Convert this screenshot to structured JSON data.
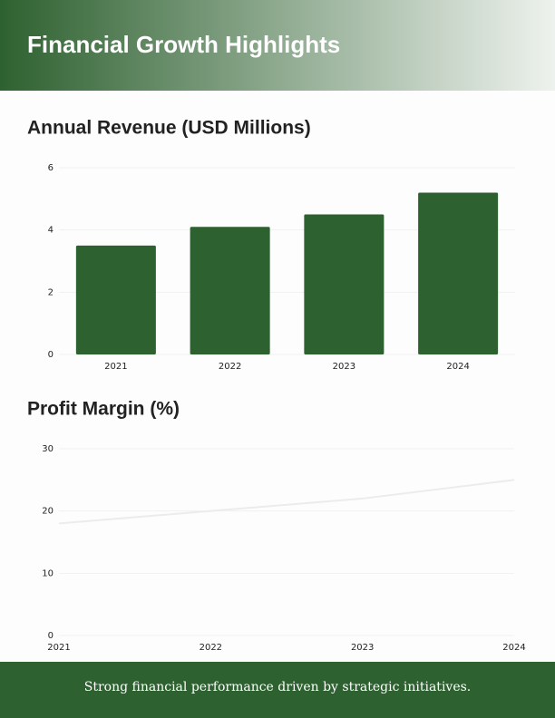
{
  "header": {
    "title": "Financial Growth Highlights"
  },
  "chart_data": [
    {
      "type": "bar",
      "title": "Annual Revenue (USD Millions)",
      "categories": [
        "2021",
        "2022",
        "2023",
        "2024"
      ],
      "values": [
        3.5,
        4.1,
        4.5,
        5.2
      ],
      "color": "#2e6130",
      "ylim": [
        0,
        6
      ],
      "yticks": [
        0,
        2,
        4,
        6
      ],
      "grid": true
    },
    {
      "type": "line",
      "title": "Profit Margin (%)",
      "categories": [
        "2021",
        "2022",
        "2023",
        "2024"
      ],
      "values": [
        18,
        20,
        22,
        25
      ],
      "color": "#ececec",
      "ylim": [
        0,
        30
      ],
      "yticks": [
        0,
        10,
        20,
        30
      ],
      "grid": true
    }
  ],
  "footer": {
    "text": "Strong financial performance driven by strategic initiatives."
  }
}
